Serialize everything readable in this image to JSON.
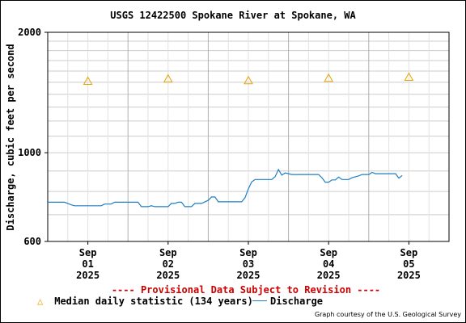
{
  "chart_data": {
    "type": "line",
    "title": "USGS 12422500 Spokane River at Spokane, WA",
    "ylabel": "Discharge, cubic feet per second",
    "xlabel": "",
    "yscale": "log",
    "ylim": [
      600,
      2000
    ],
    "yticks": [
      {
        "value": 600,
        "label": "600"
      },
      {
        "value": 1000,
        "label": "1000"
      },
      {
        "value": 2000,
        "label": "2000"
      }
    ],
    "xlim": [
      "2025-08-31T12:00",
      "2025-09-05T12:00"
    ],
    "xticks": [
      {
        "at": "2025-09-01T00:00",
        "label": [
          "Sep",
          "01",
          "2025"
        ]
      },
      {
        "at": "2025-09-02T00:00",
        "label": [
          "Sep",
          "02",
          "2025"
        ]
      },
      {
        "at": "2025-09-03T00:00",
        "label": [
          "Sep",
          "03",
          "2025"
        ]
      },
      {
        "at": "2025-09-04T00:00",
        "label": [
          "Sep",
          "04",
          "2025"
        ]
      },
      {
        "at": "2025-09-05T00:00",
        "label": [
          "Sep",
          "05",
          "2025"
        ]
      }
    ],
    "grid": true,
    "series": [
      {
        "name": "Discharge",
        "color": "#1f7fc2",
        "points": [
          [
            "2025-08-31T12:00",
            752
          ],
          [
            "2025-08-31T17:00",
            752
          ],
          [
            "2025-08-31T19:00",
            741
          ],
          [
            "2025-08-31T20:00",
            737
          ],
          [
            "2025-09-01T04:00",
            737
          ],
          [
            "2025-09-01T05:00",
            744
          ],
          [
            "2025-09-01T07:00",
            744
          ],
          [
            "2025-09-01T08:00",
            752
          ],
          [
            "2025-09-01T15:00",
            752
          ],
          [
            "2025-09-01T16:00",
            733
          ],
          [
            "2025-09-01T18:00",
            733
          ],
          [
            "2025-09-01T19:00",
            737
          ],
          [
            "2025-09-01T20:00",
            733
          ],
          [
            "2025-09-02T00:00",
            733
          ],
          [
            "2025-09-02T01:00",
            747
          ],
          [
            "2025-09-02T02:00",
            747
          ],
          [
            "2025-09-02T03:00",
            752
          ],
          [
            "2025-09-02T04:00",
            752
          ],
          [
            "2025-09-02T05:00",
            733
          ],
          [
            "2025-09-02T07:00",
            733
          ],
          [
            "2025-09-02T08:00",
            747
          ],
          [
            "2025-09-02T10:00",
            747
          ],
          [
            "2025-09-02T12:00",
            760
          ],
          [
            "2025-09-02T13:00",
            775
          ],
          [
            "2025-09-02T14:00",
            775
          ],
          [
            "2025-09-02T15:00",
            754
          ],
          [
            "2025-09-02T22:00",
            754
          ],
          [
            "2025-09-02T23:00",
            772
          ],
          [
            "2025-09-03T00:00",
            812
          ],
          [
            "2025-09-03T01:00",
            845
          ],
          [
            "2025-09-03T02:00",
            857
          ],
          [
            "2025-09-03T06:00",
            857
          ],
          [
            "2025-09-03T07:00",
            857
          ],
          [
            "2025-09-03T08:00",
            871
          ],
          [
            "2025-09-03T09:00",
            908
          ],
          [
            "2025-09-03T10:00",
            879
          ],
          [
            "2025-09-03T11:00",
            890
          ],
          [
            "2025-09-03T13:00",
            882
          ],
          [
            "2025-09-03T16:00",
            882
          ],
          [
            "2025-09-03T18:00",
            882
          ],
          [
            "2025-09-03T19:00",
            882
          ],
          [
            "2025-09-03T21:00",
            882
          ],
          [
            "2025-09-03T22:00",
            866
          ],
          [
            "2025-09-03T23:00",
            844
          ],
          [
            "2025-09-04T00:00",
            844
          ],
          [
            "2025-09-04T01:00",
            855
          ],
          [
            "2025-09-04T02:00",
            855
          ],
          [
            "2025-09-04T03:00",
            869
          ],
          [
            "2025-09-04T04:00",
            857
          ],
          [
            "2025-09-04T06:00",
            857
          ],
          [
            "2025-09-04T07:00",
            866
          ],
          [
            "2025-09-04T09:00",
            875
          ],
          [
            "2025-09-04T10:00",
            882
          ],
          [
            "2025-09-04T12:00",
            882
          ],
          [
            "2025-09-04T13:00",
            893
          ],
          [
            "2025-09-04T14:00",
            886
          ],
          [
            "2025-09-04T20:00",
            886
          ],
          [
            "2025-09-04T21:00",
            864
          ],
          [
            "2025-09-04T22:00",
            877
          ]
        ]
      }
    ],
    "markers": [
      {
        "name": "Median daily statistic (134 years)",
        "symbol": "triangle",
        "color": "#e8a200",
        "points": [
          [
            "2025-09-01T00:00",
            1510
          ],
          [
            "2025-09-02T00:00",
            1530
          ],
          [
            "2025-09-03T00:00",
            1515
          ],
          [
            "2025-09-04T00:00",
            1535
          ],
          [
            "2025-09-05T00:00",
            1545
          ]
        ]
      }
    ]
  },
  "provisional_note": "---- Provisional Data Subject to Revision ----",
  "legend": {
    "median_label": "Median daily statistic (134 years)",
    "discharge_label": "Discharge",
    "median_symbol": "△"
  },
  "credit": "Graph courtesy of the U.S. Geological Survey"
}
